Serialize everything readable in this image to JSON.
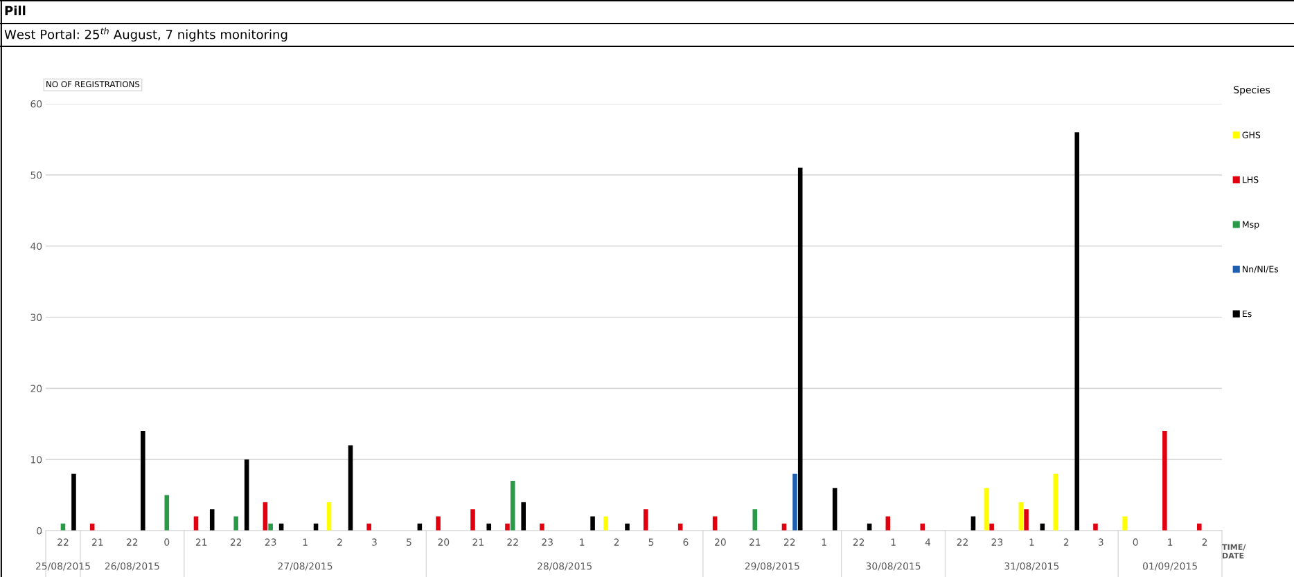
{
  "chart_data": {
    "type": "bar",
    "title": "Pill",
    "subtitle": "West Portal: 25$^{th}$ August, 7 nights monitoring",
    "ylabel": "NO OF REGISTRATIONS",
    "xlabel": "TIME/\nDATE",
    "legend_title": "Species",
    "categories": [
      "22",
      "21",
      "22",
      "0",
      "21",
      "22",
      "23",
      "1",
      "2",
      "3",
      "5",
      "20",
      "21",
      "22",
      "23",
      "1",
      "2",
      "5",
      "6",
      "20",
      "21",
      "22",
      "1",
      "22",
      "1",
      "4",
      "22",
      "23",
      "1",
      "2",
      "3",
      "0",
      "1",
      "2"
    ],
    "annotations": [
      "25/08/2015",
      "26/08/2015",
      "27/08/2015",
      "28/08/2015",
      "29/08/2015",
      "30/08/2015",
      "31/08/2015",
      "01/09/2015"
    ],
    "series": [
      {
        "name": "GHS",
        "color": "#ffff00",
        "values": [
          null,
          null,
          null,
          null,
          null,
          null,
          null,
          null,
          4,
          null,
          null,
          null,
          null,
          null,
          null,
          null,
          2,
          null,
          null,
          null,
          null,
          null,
          null,
          null,
          null,
          null,
          null,
          6,
          4,
          8,
          null,
          2,
          null,
          null
        ]
      },
      {
        "name": "LHS",
        "color": "#e0000f",
        "values": [
          null,
          1,
          null,
          null,
          2,
          null,
          4,
          null,
          null,
          1,
          null,
          2,
          3,
          1,
          1,
          null,
          null,
          3,
          1,
          2,
          null,
          1,
          null,
          null,
          2,
          1,
          null,
          1,
          3,
          null,
          1,
          null,
          14,
          1
        ]
      },
      {
        "name": "Msp",
        "color": "#2a9a48",
        "values": [
          1,
          null,
          null,
          5,
          null,
          2,
          1,
          null,
          null,
          null,
          null,
          null,
          null,
          7,
          null,
          null,
          null,
          null,
          null,
          null,
          3,
          null,
          null,
          null,
          null,
          null,
          null,
          null,
          null,
          null,
          null,
          null,
          null,
          null
        ]
      },
      {
        "name": "Nn/Nl/Es",
        "color": "#1f5fb0",
        "values": [
          null,
          null,
          null,
          null,
          null,
          null,
          null,
          null,
          null,
          null,
          null,
          null,
          null,
          null,
          null,
          null,
          null,
          null,
          null,
          null,
          null,
          8,
          null,
          null,
          null,
          null,
          null,
          null,
          null,
          null,
          null,
          null,
          null,
          null
        ]
      },
      {
        "name": "Es",
        "color": "#000000",
        "values": [
          8,
          null,
          14,
          null,
          3,
          10,
          1,
          1,
          12,
          null,
          1,
          null,
          1,
          4,
          null,
          2,
          1,
          null,
          null,
          null,
          null,
          51,
          6,
          1,
          null,
          null,
          2,
          null,
          1,
          56,
          null,
          null,
          null,
          null
        ]
      }
    ],
    "ylim": [
      0,
      60
    ],
    "yticks": [
      0,
      10,
      20,
      30,
      40,
      50,
      60
    ],
    "grid": "y",
    "legend": "right"
  }
}
